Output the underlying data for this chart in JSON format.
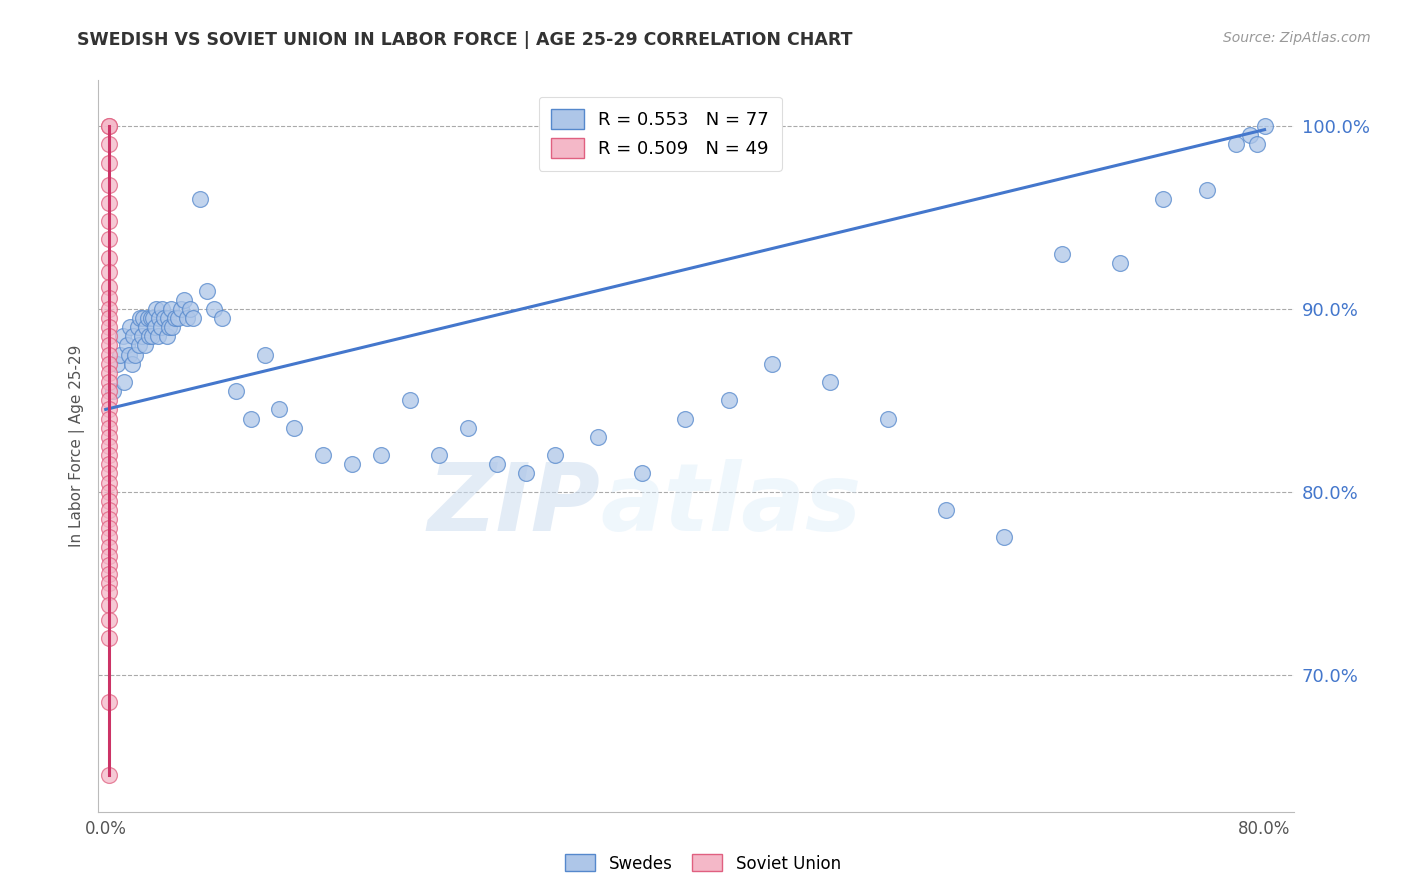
{
  "title": "SWEDISH VS SOVIET UNION IN LABOR FORCE | AGE 25-29 CORRELATION CHART",
  "source_text": "Source: ZipAtlas.com",
  "ylabel": "In Labor Force | Age 25-29",
  "xlim": [
    -0.005,
    0.82
  ],
  "ylim": [
    0.625,
    1.025
  ],
  "xticks": [
    0.0,
    0.1,
    0.2,
    0.3,
    0.4,
    0.5,
    0.6,
    0.7,
    0.8
  ],
  "xticklabels": [
    "0.0%",
    "",
    "",
    "",
    "",
    "",
    "",
    "",
    "80.0%"
  ],
  "ytick_positions": [
    0.7,
    0.8,
    0.9,
    1.0
  ],
  "yticklabels": [
    "70.0%",
    "80.0%",
    "90.0%",
    "100.0%"
  ],
  "grid_color": "#aaaaaa",
  "background_color": "#ffffff",
  "blue_fill_color": "#aec6e8",
  "blue_edge_color": "#5588cc",
  "pink_fill_color": "#f4b8c8",
  "pink_edge_color": "#e06080",
  "blue_line_color": "#4477cc",
  "pink_line_color": "#cc3366",
  "legend_blue_label": "R = 0.553   N = 77",
  "legend_pink_label": "R = 0.509   N = 49",
  "watermark_zip": "ZIP",
  "watermark_atlas": "atlas",
  "bottom_legend_blue": "Swedes",
  "bottom_legend_pink": "Soviet Union",
  "blue_scatter_x": [
    0.005,
    0.008,
    0.01,
    0.012,
    0.013,
    0.015,
    0.016,
    0.017,
    0.018,
    0.019,
    0.02,
    0.022,
    0.023,
    0.024,
    0.025,
    0.026,
    0.027,
    0.028,
    0.029,
    0.03,
    0.031,
    0.032,
    0.033,
    0.034,
    0.035,
    0.036,
    0.037,
    0.038,
    0.039,
    0.04,
    0.042,
    0.043,
    0.044,
    0.045,
    0.046,
    0.048,
    0.05,
    0.052,
    0.054,
    0.056,
    0.058,
    0.06,
    0.065,
    0.07,
    0.075,
    0.08,
    0.09,
    0.1,
    0.11,
    0.12,
    0.13,
    0.15,
    0.17,
    0.19,
    0.21,
    0.23,
    0.25,
    0.27,
    0.29,
    0.31,
    0.34,
    0.37,
    0.4,
    0.43,
    0.46,
    0.5,
    0.54,
    0.58,
    0.62,
    0.66,
    0.7,
    0.73,
    0.76,
    0.78,
    0.79,
    0.795,
    0.8
  ],
  "blue_scatter_y": [
    0.855,
    0.87,
    0.875,
    0.885,
    0.86,
    0.88,
    0.875,
    0.89,
    0.87,
    0.885,
    0.875,
    0.89,
    0.88,
    0.895,
    0.885,
    0.895,
    0.88,
    0.89,
    0.895,
    0.885,
    0.895,
    0.885,
    0.895,
    0.89,
    0.9,
    0.885,
    0.895,
    0.89,
    0.9,
    0.895,
    0.885,
    0.895,
    0.89,
    0.9,
    0.89,
    0.895,
    0.895,
    0.9,
    0.905,
    0.895,
    0.9,
    0.895,
    0.96,
    0.91,
    0.9,
    0.895,
    0.855,
    0.84,
    0.875,
    0.845,
    0.835,
    0.82,
    0.815,
    0.82,
    0.85,
    0.82,
    0.835,
    0.815,
    0.81,
    0.82,
    0.83,
    0.81,
    0.84,
    0.85,
    0.87,
    0.86,
    0.84,
    0.79,
    0.775,
    0.93,
    0.925,
    0.96,
    0.965,
    0.99,
    0.995,
    0.99,
    1.0
  ],
  "pink_scatter_x": [
    0.002,
    0.002,
    0.002,
    0.002,
    0.002,
    0.002,
    0.002,
    0.002,
    0.002,
    0.002,
    0.002,
    0.002,
    0.002,
    0.002,
    0.002,
    0.002,
    0.002,
    0.002,
    0.002,
    0.002,
    0.002,
    0.002,
    0.002,
    0.002,
    0.002,
    0.002,
    0.002,
    0.002,
    0.002,
    0.002,
    0.002,
    0.002,
    0.002,
    0.002,
    0.002,
    0.002,
    0.002,
    0.002,
    0.002,
    0.002,
    0.002,
    0.002,
    0.002,
    0.002,
    0.002,
    0.002,
    0.002,
    0.002,
    0.002
  ],
  "pink_scatter_y": [
    1.0,
    1.0,
    0.99,
    0.98,
    0.968,
    0.958,
    0.948,
    0.938,
    0.928,
    0.92,
    0.912,
    0.906,
    0.9,
    0.895,
    0.89,
    0.885,
    0.88,
    0.875,
    0.87,
    0.865,
    0.86,
    0.855,
    0.85,
    0.845,
    0.84,
    0.835,
    0.83,
    0.825,
    0.82,
    0.815,
    0.81,
    0.805,
    0.8,
    0.795,
    0.79,
    0.785,
    0.78,
    0.775,
    0.77,
    0.765,
    0.76,
    0.755,
    0.75,
    0.745,
    0.738,
    0.73,
    0.72,
    0.685,
    0.645
  ],
  "blue_trendline_x": [
    0.0,
    0.8
  ],
  "blue_trendline_y": [
    0.845,
    0.998
  ]
}
